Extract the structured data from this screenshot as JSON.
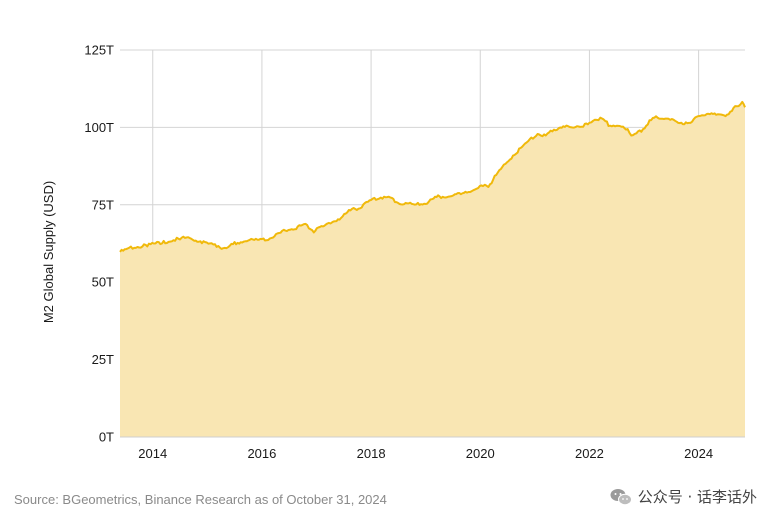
{
  "chart_data": {
    "type": "area",
    "ylabel": "M2 Global Supply (USD)",
    "ylim": [
      0,
      125
    ],
    "y_ticks": [
      {
        "value": 0,
        "label": "0T"
      },
      {
        "value": 25,
        "label": "25T"
      },
      {
        "value": 50,
        "label": "50T"
      },
      {
        "value": 75,
        "label": "75T"
      },
      {
        "value": 100,
        "label": "100T"
      },
      {
        "value": 125,
        "label": "125T"
      }
    ],
    "xlim": [
      2013.4,
      2024.85
    ],
    "x_ticks": [
      {
        "value": 2014,
        "label": "2014"
      },
      {
        "value": 2016,
        "label": "2016"
      },
      {
        "value": 2018,
        "label": "2018"
      },
      {
        "value": 2020,
        "label": "2020"
      },
      {
        "value": 2022,
        "label": "2022"
      },
      {
        "value": 2024,
        "label": "2024"
      }
    ],
    "grid": true,
    "colors": {
      "line": "#f0b90b",
      "fill": "#f9e6b3",
      "grid": "#d4d4d4"
    },
    "series": [
      {
        "x": [
          2013.4,
          2013.6,
          2013.9,
          2014.2,
          2014.5,
          2014.65,
          2014.9,
          2015.2,
          2015.35,
          2015.5,
          2015.75,
          2016.0,
          2016.2,
          2016.4,
          2016.6,
          2016.8,
          2016.95,
          2017.2,
          2017.45,
          2017.65,
          2017.8,
          2018.0,
          2018.15,
          2018.35,
          2018.55,
          2018.8,
          2019.0,
          2019.2,
          2019.45,
          2019.7,
          2019.9,
          2020.05,
          2020.15,
          2020.35,
          2020.6,
          2020.85,
          2021.05,
          2021.2,
          2021.35,
          2021.55,
          2021.8,
          2022.0,
          2022.1,
          2022.2,
          2022.35,
          2022.5,
          2022.7,
          2022.8,
          2022.95,
          2023.1,
          2023.25,
          2023.45,
          2023.6,
          2023.85,
          2024.0,
          2024.15,
          2024.35,
          2024.55,
          2024.7,
          2024.8,
          2024.85
        ],
        "y": [
          59.8,
          61,
          62,
          63,
          64,
          64.5,
          63,
          61.5,
          61,
          62.5,
          63.5,
          63.5,
          64.5,
          66.5,
          67.5,
          68.5,
          66.5,
          68.5,
          71,
          73.5,
          74,
          76.5,
          77.5,
          77,
          75.5,
          75,
          75.5,
          77.5,
          78,
          78.5,
          80,
          81,
          81,
          86,
          91,
          95,
          98,
          97,
          99.5,
          100,
          100.5,
          101,
          102.5,
          103,
          101,
          100.5,
          99.5,
          97,
          99,
          102,
          103.5,
          102.5,
          102,
          101,
          104,
          104,
          104.5,
          104,
          107,
          108,
          106.5
        ]
      }
    ]
  },
  "footer": {
    "source": "Source: BGeometrics, Binance Research as of October 31, 2024",
    "watermark": "公众号 · 话李话外"
  }
}
